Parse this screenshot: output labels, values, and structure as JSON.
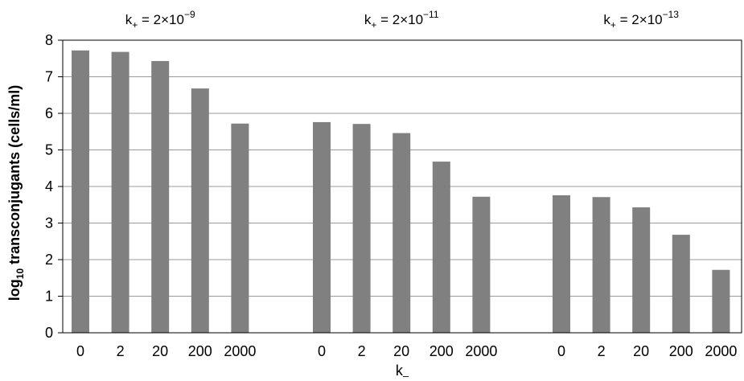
{
  "chart_data": {
    "type": "bar",
    "ylabel_main": "log",
    "ylabel_sub": "10",
    "ylabel_rest": " transconjugants (cells/ml)",
    "xlabel_main": "k",
    "xlabel_sub": "–",
    "ylim": [
      0,
      8
    ],
    "yticks": [
      "0",
      "1",
      "2",
      "3",
      "4",
      "5",
      "6",
      "7",
      "8"
    ],
    "grid": true,
    "bar_color": "#808080",
    "groups": [
      {
        "label_main": "k",
        "label_sub": "+",
        "label_eq": " = 2×10",
        "label_exp": "−9",
        "categories": [
          "0",
          "2",
          "20",
          "200",
          "2000"
        ],
        "values": [
          7.72,
          7.68,
          7.43,
          6.68,
          5.72
        ]
      },
      {
        "label_main": "k",
        "label_sub": "+",
        "label_eq": " = 2×10",
        "label_exp": "−11",
        "categories": [
          "0",
          "2",
          "20",
          "200",
          "2000"
        ],
        "values": [
          5.76,
          5.71,
          5.46,
          4.68,
          3.72
        ]
      },
      {
        "label_main": "k",
        "label_sub": "+",
        "label_eq": " = 2×10",
        "label_exp": "−13",
        "categories": [
          "0",
          "2",
          "20",
          "200",
          "2000"
        ],
        "values": [
          3.76,
          3.71,
          3.43,
          2.68,
          1.72
        ]
      }
    ]
  }
}
